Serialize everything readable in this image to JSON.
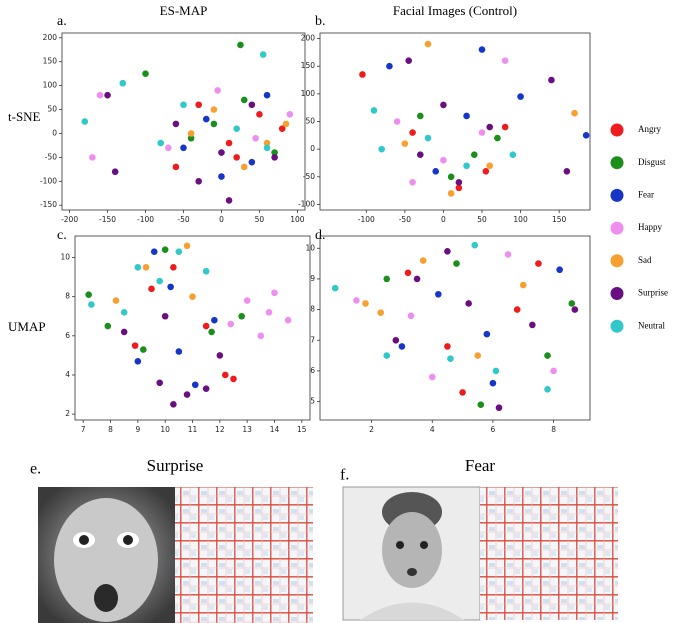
{
  "chart_data": [
    {
      "type": "scatter",
      "label": "a.",
      "title": "ES-MAP",
      "row_label": "t-SNE",
      "xlim": [
        -210,
        110
      ],
      "ylim": [
        -160,
        210
      ],
      "xticks": [
        -200,
        -150,
        -100,
        -50,
        0,
        50,
        100
      ],
      "yticks": [
        -150,
        -100,
        -50,
        0,
        50,
        100,
        150,
        200
      ],
      "series": [
        {
          "name": "Angry",
          "color": "#ee1c1c",
          "x": [
            -30,
            10,
            50,
            -60,
            80,
            20
          ],
          "values": [
            60,
            -20,
            40,
            -70,
            10,
            -50
          ]
        },
        {
          "name": "Disgust",
          "color": "#1a8f1a",
          "x": [
            -100,
            -40,
            30,
            70,
            -10,
            25
          ],
          "values": [
            125,
            -10,
            70,
            -40,
            20,
            185
          ]
        },
        {
          "name": "Fear",
          "color": "#1636c8",
          "x": [
            -20,
            40,
            -50,
            60,
            0
          ],
          "values": [
            30,
            -60,
            -30,
            80,
            -90
          ]
        },
        {
          "name": "Happy",
          "color": "#ee8ff0",
          "x": [
            -170,
            -160,
            -5,
            -70,
            45,
            90
          ],
          "values": [
            -50,
            80,
            90,
            -30,
            -10,
            40
          ]
        },
        {
          "name": "Sad",
          "color": "#f7a030",
          "x": [
            -10,
            60,
            -40,
            30,
            85
          ],
          "values": [
            50,
            -20,
            0,
            -70,
            20
          ]
        },
        {
          "name": "Surprise",
          "color": "#6a0f80",
          "x": [
            -150,
            -140,
            -60,
            0,
            40,
            -30,
            70,
            10
          ],
          "values": [
            80,
            -80,
            20,
            -40,
            60,
            -100,
            -50,
            -140
          ]
        },
        {
          "name": "Neutral",
          "color": "#30c8c8",
          "x": [
            -180,
            -130,
            -50,
            20,
            60,
            -80,
            55
          ],
          "values": [
            25,
            105,
            60,
            10,
            -30,
            -20,
            165
          ]
        }
      ]
    },
    {
      "type": "scatter",
      "label": "b.",
      "title": "Facial Images (Control)",
      "xlim": [
        -160,
        190
      ],
      "ylim": [
        -110,
        210
      ],
      "xticks": [
        -100,
        -50,
        0,
        50,
        100,
        150
      ],
      "yticks": [
        -100,
        -50,
        0,
        50,
        100,
        150,
        200
      ],
      "series": [
        {
          "name": "Angry",
          "color": "#ee1c1c",
          "x": [
            -105,
            55,
            -40,
            20,
            80
          ],
          "values": [
            135,
            -40,
            30,
            -70,
            40
          ]
        },
        {
          "name": "Disgust",
          "color": "#1a8f1a",
          "x": [
            -30,
            40,
            10,
            70
          ],
          "values": [
            60,
            -10,
            -50,
            20
          ]
        },
        {
          "name": "Fear",
          "color": "#1636c8",
          "x": [
            -70,
            50,
            185,
            100,
            -10,
            30
          ],
          "values": [
            150,
            180,
            25,
            95,
            -40,
            60
          ]
        },
        {
          "name": "Happy",
          "color": "#ee8ff0",
          "x": [
            -60,
            80,
            0,
            -40,
            50
          ],
          "values": [
            50,
            160,
            -20,
            -60,
            30
          ]
        },
        {
          "name": "Sad",
          "color": "#f7a030",
          "x": [
            -20,
            170,
            10,
            -50,
            60
          ],
          "values": [
            190,
            65,
            -80,
            10,
            -30
          ]
        },
        {
          "name": "Surprise",
          "color": "#6a0f80",
          "x": [
            -45,
            20,
            140,
            160,
            -30,
            60,
            0
          ],
          "values": [
            160,
            -60,
            125,
            -40,
            -10,
            40,
            80
          ]
        },
        {
          "name": "Neutral",
          "color": "#30c8c8",
          "x": [
            -90,
            -80,
            30,
            -20,
            90
          ],
          "values": [
            70,
            0,
            -30,
            20,
            -10
          ]
        }
      ]
    },
    {
      "type": "scatter",
      "label": "c.",
      "row_label": "UMAP",
      "xlim": [
        6.7,
        15.3
      ],
      "ylim": [
        1.7,
        11.1
      ],
      "xticks": [
        7,
        8,
        9,
        10,
        11,
        12,
        13,
        14,
        15
      ],
      "yticks": [
        2,
        4,
        6,
        8,
        10
      ],
      "series": [
        {
          "name": "Angry",
          "color": "#ee1c1c",
          "x": [
            9.5,
            12.2,
            12.5,
            10.3,
            11.5,
            8.9
          ],
          "values": [
            8.4,
            4.0,
            3.8,
            9.5,
            6.5,
            5.5
          ]
        },
        {
          "name": "Disgust",
          "color": "#1a8f1a",
          "x": [
            7.2,
            9.2,
            11.7,
            10.0,
            12.8,
            7.9
          ],
          "values": [
            8.1,
            5.3,
            6.2,
            10.4,
            7.0,
            6.5
          ]
        },
        {
          "name": "Fear",
          "color": "#1636c8",
          "x": [
            9.6,
            9.0,
            10.5,
            11.8,
            10.2,
            11.1
          ],
          "values": [
            10.3,
            4.7,
            5.2,
            6.8,
            8.5,
            3.5
          ]
        },
        {
          "name": "Happy",
          "color": "#ee8ff0",
          "x": [
            13.0,
            14.5,
            13.8,
            12.4,
            14.0,
            13.5
          ],
          "values": [
            7.8,
            6.8,
            7.2,
            6.6,
            8.2,
            6.0
          ]
        },
        {
          "name": "Sad",
          "color": "#f7a030",
          "x": [
            10.8,
            9.3,
            11.0,
            8.2
          ],
          "values": [
            10.6,
            9.5,
            8.0,
            7.8
          ]
        },
        {
          "name": "Surprise",
          "color": "#6a0f80",
          "x": [
            10.3,
            10.8,
            9.8,
            11.5,
            12.0,
            8.5,
            10.0
          ],
          "values": [
            2.5,
            3.0,
            3.6,
            3.3,
            5.0,
            6.2,
            7.0
          ]
        },
        {
          "name": "Neutral",
          "color": "#30c8c8",
          "x": [
            7.3,
            8.5,
            9.8,
            10.5,
            11.5,
            9.0
          ],
          "values": [
            7.6,
            7.2,
            8.8,
            10.3,
            9.3,
            9.5
          ]
        }
      ]
    },
    {
      "type": "scatter",
      "label": "d.",
      "xlim": [
        0.3,
        9.2
      ],
      "ylim": [
        4.4,
        10.4
      ],
      "xticks": [
        2,
        4,
        6,
        8
      ],
      "yticks": [
        5,
        6,
        7,
        8,
        9,
        10
      ],
      "series": [
        {
          "name": "Angry",
          "color": "#ee1c1c",
          "x": [
            3.2,
            5.0,
            6.8,
            4.5,
            7.5
          ],
          "values": [
            9.2,
            5.3,
            8.0,
            6.8,
            9.5
          ]
        },
        {
          "name": "Disgust",
          "color": "#1a8f1a",
          "x": [
            2.5,
            4.8,
            7.8,
            8.6,
            5.6
          ],
          "values": [
            9.0,
            9.5,
            6.5,
            8.2,
            4.9
          ]
        },
        {
          "name": "Fear",
          "color": "#1636c8",
          "x": [
            3.0,
            6.0,
            8.2,
            4.2,
            5.8
          ],
          "values": [
            6.8,
            5.6,
            9.3,
            8.5,
            7.2
          ]
        },
        {
          "name": "Happy",
          "color": "#ee8ff0",
          "x": [
            1.5,
            4.0,
            6.5,
            8.0,
            3.3
          ],
          "values": [
            8.3,
            5.8,
            9.8,
            6.0,
            7.8
          ]
        },
        {
          "name": "Sad",
          "color": "#f7a030",
          "x": [
            1.8,
            3.7,
            5.5,
            7.0,
            2.3
          ],
          "values": [
            8.2,
            9.6,
            6.5,
            8.8,
            7.9
          ]
        },
        {
          "name": "Surprise",
          "color": "#6a0f80",
          "x": [
            2.8,
            4.5,
            5.2,
            6.2,
            7.3,
            8.7,
            3.5
          ],
          "values": [
            7.0,
            9.9,
            8.2,
            4.8,
            7.5,
            8.0,
            9.0
          ]
        },
        {
          "name": "Neutral",
          "color": "#30c8c8",
          "x": [
            0.8,
            5.4,
            6.1,
            7.8,
            4.6,
            2.5
          ],
          "values": [
            8.7,
            10.1,
            6.0,
            5.4,
            6.4,
            6.5
          ]
        }
      ]
    }
  ],
  "panels": [
    {
      "label": "e.",
      "title": "Surprise"
    },
    {
      "label": "f.",
      "title": "Fear"
    }
  ]
}
